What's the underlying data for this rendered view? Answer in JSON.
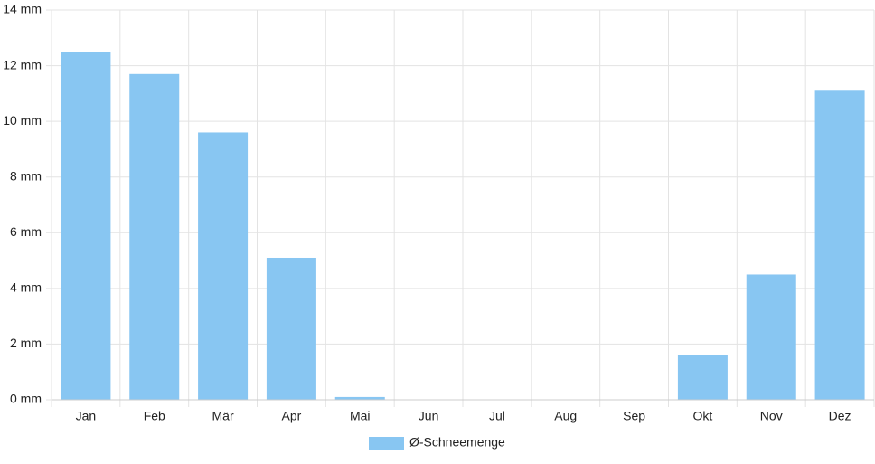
{
  "chart_data": {
    "type": "bar",
    "categories": [
      "Jan",
      "Feb",
      "Mär",
      "Apr",
      "Mai",
      "Jun",
      "Jul",
      "Aug",
      "Sep",
      "Okt",
      "Nov",
      "Dez"
    ],
    "series": [
      {
        "name": "Ø-Schneemenge",
        "color": "#88c6f2",
        "values": [
          12.5,
          11.7,
          9.6,
          5.1,
          0.1,
          0,
          0,
          0,
          0,
          1.6,
          4.5,
          11.1
        ]
      }
    ],
    "ylim": [
      0,
      14
    ],
    "yticks": [
      {
        "value": 0,
        "label": "0 mm"
      },
      {
        "value": 2,
        "label": "2 mm"
      },
      {
        "value": 4,
        "label": "4 mm"
      },
      {
        "value": 6,
        "label": "6 mm"
      },
      {
        "value": 8,
        "label": "8 mm"
      },
      {
        "value": 10,
        "label": "10 mm"
      },
      {
        "value": 12,
        "label": "12 mm"
      },
      {
        "value": 14,
        "label": "14 mm"
      }
    ],
    "grid": true
  }
}
